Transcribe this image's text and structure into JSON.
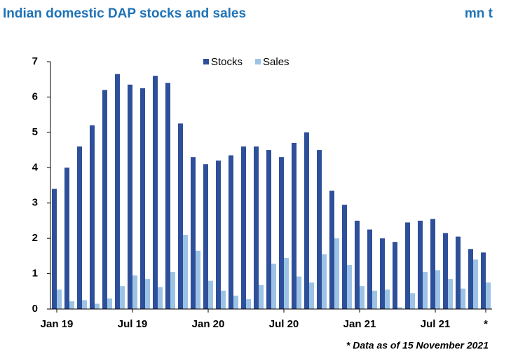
{
  "chart_data": {
    "type": "bar",
    "title": "Indian domestic DAP stocks and sales",
    "unit": "mn t",
    "footnote": "* Data as of 15 November 2021",
    "categories": [
      "Jan 19",
      null,
      null,
      null,
      null,
      null,
      "Jul 19",
      null,
      null,
      null,
      null,
      null,
      "Jan 20",
      null,
      null,
      null,
      null,
      null,
      "Jul 20",
      null,
      null,
      null,
      null,
      null,
      "Jan 21",
      null,
      null,
      null,
      null,
      null,
      "Jul 21",
      null,
      null,
      null,
      "*"
    ],
    "series": [
      {
        "name": "Stocks",
        "color": "#2e4f9a",
        "values": [
          3.4,
          4.0,
          4.6,
          5.2,
          6.2,
          6.65,
          6.35,
          6.25,
          6.6,
          6.4,
          5.25,
          4.3,
          4.1,
          4.2,
          4.35,
          4.6,
          4.6,
          4.5,
          4.3,
          4.7,
          5.0,
          4.5,
          3.35,
          2.95,
          2.5,
          2.25,
          2.0,
          1.9,
          2.45,
          2.5,
          2.55,
          2.15,
          2.05,
          1.7,
          1.6
        ]
      },
      {
        "name": "Sales",
        "color": "#9cc3e6",
        "values": [
          0.55,
          0.22,
          0.25,
          0.15,
          0.3,
          0.65,
          0.95,
          0.85,
          0.62,
          1.05,
          2.1,
          1.65,
          0.8,
          0.52,
          0.38,
          0.28,
          0.68,
          1.28,
          1.45,
          0.92,
          0.75,
          1.55,
          2.0,
          1.25,
          0.65,
          0.52,
          0.55,
          0.05,
          0.45,
          1.05,
          1.1,
          0.85,
          0.58,
          1.4,
          0.75
        ]
      }
    ],
    "ylim": [
      0,
      7
    ],
    "yticks": [
      0,
      1,
      2,
      3,
      4,
      5,
      6,
      7
    ],
    "grid": false,
    "legend": "top"
  }
}
